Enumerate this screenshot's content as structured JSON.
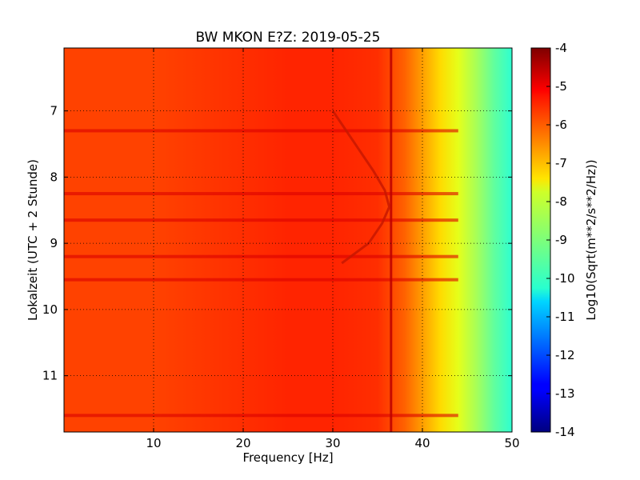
{
  "chart_data": {
    "type": "heatmap",
    "title": "BW MKON E?Z: 2019-05-25",
    "xlabel": "Frequency [Hz]",
    "ylabel": "Lokalzeit (UTC + 2 Stunde)",
    "xlim": [
      0,
      50
    ],
    "ylim": [
      11.85,
      6.05
    ],
    "x_ticks": [
      "10",
      "20",
      "30",
      "40",
      "50"
    ],
    "x_tick_values": [
      10,
      20,
      30,
      40,
      50
    ],
    "y_ticks": [
      "7",
      "8",
      "9",
      "10",
      "11"
    ],
    "y_tick_values": [
      7,
      8,
      9,
      10,
      11
    ],
    "grid": true,
    "colormap": "jet",
    "colorbar": {
      "label": "Log10(Sqrt(m**2/s**2/Hz))",
      "range": [
        -14,
        -4
      ],
      "ticks": [
        "-4",
        "-5",
        "-6",
        "-7",
        "-8",
        "-9",
        "-10",
        "-11",
        "-12",
        "-13",
        "-14"
      ],
      "tick_values": [
        -4,
        -5,
        -6,
        -7,
        -8,
        -9,
        -10,
        -11,
        -12,
        -13,
        -14
      ]
    },
    "spectrum_profile": {
      "frequency_hz": [
        0,
        10,
        20,
        25,
        30,
        35,
        38,
        40,
        42,
        44,
        46,
        48,
        50
      ],
      "value": [
        -5.9,
        -5.9,
        -5.7,
        -5.6,
        -5.6,
        -5.7,
        -6.2,
        -6.8,
        -7.4,
        -8.0,
        -8.6,
        -9.3,
        -9.8
      ]
    },
    "narrowband_lines_hz": [
      36.5
    ],
    "broadband_bursts_hours": [
      7.3,
      8.25,
      8.65,
      9.2,
      9.55,
      11.6
    ],
    "sweeping_feature": {
      "hours": [
        7.0,
        7.3,
        7.6,
        7.9,
        8.2,
        8.45,
        8.7,
        9.0,
        9.3
      ],
      "frequency_hz": [
        30.0,
        31.5,
        33.0,
        34.5,
        35.8,
        36.3,
        35.5,
        34.0,
        31.0
      ]
    }
  }
}
